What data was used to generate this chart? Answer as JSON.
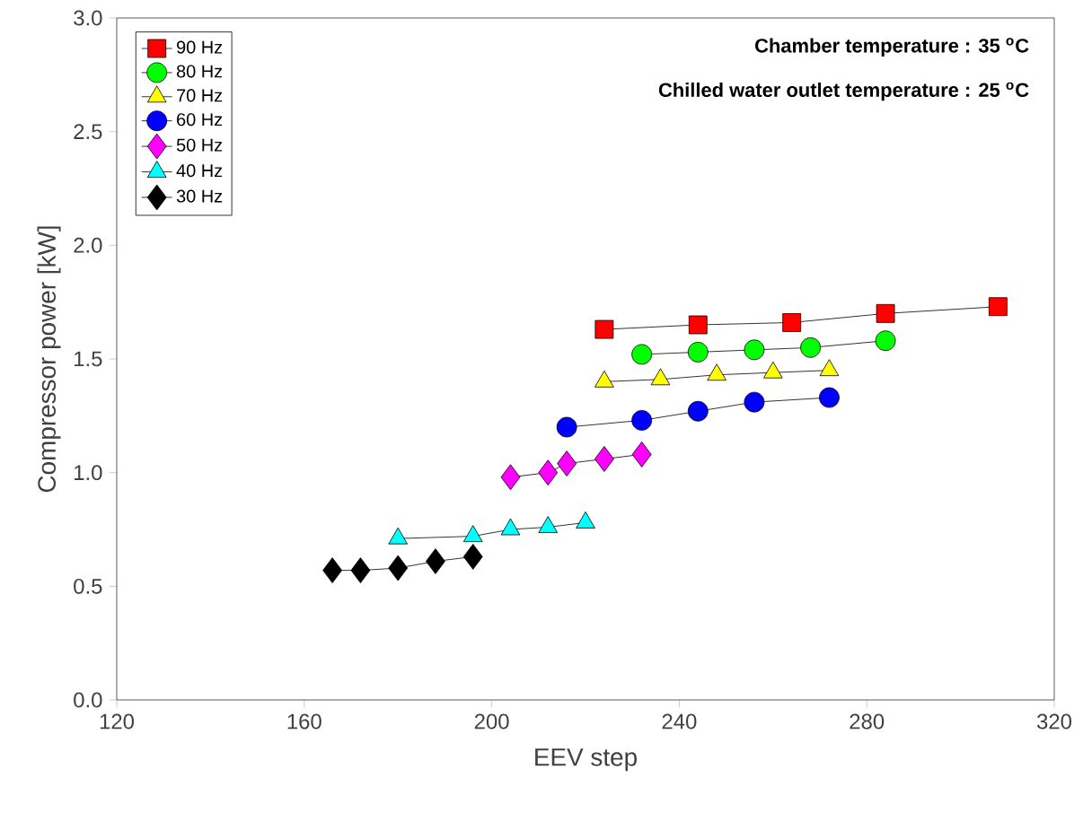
{
  "chart_data": {
    "type": "line",
    "xlabel": "EEV step",
    "ylabel": "Compressor power [kW]",
    "annotations": [
      "Chamber temperature : 35 $^{o}$C",
      "Chilled water outlet temperature : 25 $^{o}$C"
    ],
    "xlim": [
      120,
      320
    ],
    "xticks": [
      120,
      160,
      200,
      240,
      280,
      320
    ],
    "ylim": [
      0.0,
      3.0
    ],
    "yticks": [
      {
        "value": 0,
        "label": "0.0"
      },
      {
        "value": 0.5,
        "label": "0.5"
      },
      {
        "value": 1,
        "label": "1.0"
      },
      {
        "value": 1.5,
        "label": "1.5"
      },
      {
        "value": 2,
        "label": "2.0"
      },
      {
        "value": 2.5,
        "label": "2.5"
      },
      {
        "value": 3,
        "label": "3.0"
      }
    ],
    "grid": false,
    "legend": "top left",
    "line_style": "solid",
    "series": [
      {
        "name": "90 Hz",
        "color": "#ff0000",
        "marker": "square",
        "x": [
          224,
          244,
          264,
          284,
          308
        ],
        "values": [
          1.63,
          1.65,
          1.66,
          1.7,
          1.73
        ]
      },
      {
        "name": "80 Hz",
        "color": "#00ff00",
        "marker": "circle",
        "x": [
          232,
          244,
          256,
          268,
          284
        ],
        "values": [
          1.52,
          1.53,
          1.54,
          1.55,
          1.58
        ]
      },
      {
        "name": "70 Hz",
        "color": "#ffff00",
        "marker": "triangle",
        "x": [
          224,
          236,
          248,
          260,
          272
        ],
        "values": [
          1.4,
          1.41,
          1.43,
          1.44,
          1.45
        ]
      },
      {
        "name": "60 Hz",
        "color": "#0000ff",
        "marker": "circle",
        "x": [
          216,
          232,
          244,
          256,
          272
        ],
        "values": [
          1.2,
          1.23,
          1.27,
          1.31,
          1.33
        ]
      },
      {
        "name": "50 Hz",
        "color": "#ff00ff",
        "marker": "diamond",
        "x": [
          204,
          212,
          216,
          224,
          232
        ],
        "values": [
          0.98,
          1.0,
          1.04,
          1.06,
          1.08
        ]
      },
      {
        "name": "40 Hz",
        "color": "#00ffff",
        "marker": "triangle",
        "x": [
          180,
          196,
          204,
          212,
          220
        ],
        "values": [
          0.71,
          0.72,
          0.75,
          0.76,
          0.78
        ]
      },
      {
        "name": "30 Hz",
        "color": "#000000",
        "marker": "diamond",
        "x": [
          166,
          172,
          180,
          188,
          196
        ],
        "values": [
          0.57,
          0.57,
          0.58,
          0.61,
          0.63
        ]
      }
    ]
  }
}
